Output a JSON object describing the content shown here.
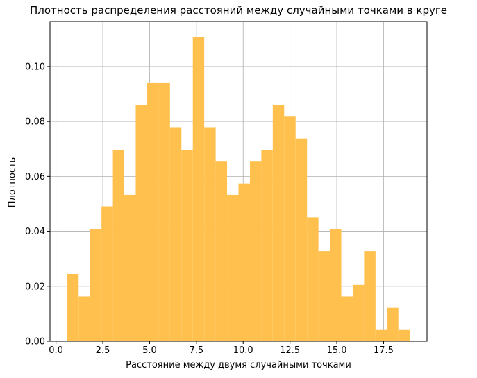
{
  "chart_data": {
    "type": "bar",
    "title": "Плотность распределения расстояний между случайными точками в круге",
    "xlabel": "Расстояние между двумя случайными точками",
    "ylabel": "Плотность",
    "xlim": [
      -0.32,
      19.82
    ],
    "ylim": [
      0,
      0.1164
    ],
    "xticks": [
      0.0,
      2.5,
      5.0,
      7.5,
      10.0,
      12.5,
      15.0,
      17.5
    ],
    "xtick_labels": [
      "0.0",
      "2.5",
      "5.0",
      "7.5",
      "10.0",
      "12.5",
      "15.0",
      "17.5"
    ],
    "yticks": [
      0.0,
      0.02,
      0.04,
      0.06,
      0.08,
      0.1
    ],
    "ytick_labels": [
      "0.00",
      "0.02",
      "0.04",
      "0.06",
      "0.08",
      "0.10"
    ],
    "grid": true,
    "color": "#ffc04d",
    "bins": [
      {
        "x0": 0.6,
        "x1": 1.21,
        "value": 0.0245
      },
      {
        "x0": 1.21,
        "x1": 1.82,
        "value": 0.0163
      },
      {
        "x0": 1.82,
        "x1": 2.43,
        "value": 0.0409
      },
      {
        "x0": 2.43,
        "x1": 3.04,
        "value": 0.0491
      },
      {
        "x0": 3.04,
        "x1": 3.65,
        "value": 0.0697
      },
      {
        "x0": 3.65,
        "x1": 4.26,
        "value": 0.0533
      },
      {
        "x0": 4.26,
        "x1": 4.87,
        "value": 0.086
      },
      {
        "x0": 4.87,
        "x1": 5.48,
        "value": 0.0942
      },
      {
        "x0": 5.48,
        "x1": 6.09,
        "value": 0.0942
      },
      {
        "x0": 6.09,
        "x1": 6.7,
        "value": 0.0779
      },
      {
        "x0": 6.7,
        "x1": 7.31,
        "value": 0.0697
      },
      {
        "x0": 7.31,
        "x1": 7.92,
        "value": 0.1106
      },
      {
        "x0": 7.92,
        "x1": 8.53,
        "value": 0.0779
      },
      {
        "x0": 8.53,
        "x1": 9.14,
        "value": 0.0656
      },
      {
        "x0": 9.14,
        "x1": 9.75,
        "value": 0.0533
      },
      {
        "x0": 9.75,
        "x1": 10.36,
        "value": 0.0574
      },
      {
        "x0": 10.36,
        "x1": 10.97,
        "value": 0.0656
      },
      {
        "x0": 10.97,
        "x1": 11.58,
        "value": 0.0697
      },
      {
        "x0": 11.58,
        "x1": 12.19,
        "value": 0.086
      },
      {
        "x0": 12.19,
        "x1": 12.8,
        "value": 0.082
      },
      {
        "x0": 12.8,
        "x1": 13.41,
        "value": 0.0738
      },
      {
        "x0": 13.41,
        "x1": 14.02,
        "value": 0.0451
      },
      {
        "x0": 14.02,
        "x1": 14.63,
        "value": 0.0328
      },
      {
        "x0": 14.63,
        "x1": 15.24,
        "value": 0.0409
      },
      {
        "x0": 15.24,
        "x1": 15.85,
        "value": 0.0163
      },
      {
        "x0": 15.85,
        "x1": 16.46,
        "value": 0.0205
      },
      {
        "x0": 16.46,
        "x1": 17.07,
        "value": 0.0328
      },
      {
        "x0": 17.07,
        "x1": 17.68,
        "value": 0.0041
      },
      {
        "x0": 17.68,
        "x1": 18.29,
        "value": 0.0122
      },
      {
        "x0": 18.29,
        "x1": 18.9,
        "value": 0.0041
      }
    ]
  }
}
